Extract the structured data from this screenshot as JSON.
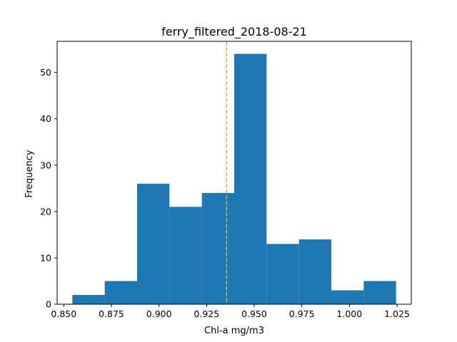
{
  "chart_data": {
    "type": "bar",
    "title": "ferry_filtered_2018-08-21",
    "xlabel": "Chl-a mg/m3",
    "ylabel": "Frequency",
    "xlim": [
      0.8465,
      1.0325
    ],
    "ylim": [
      0,
      56.7
    ],
    "bins": [
      {
        "x0": 0.8545,
        "x1": 0.8715,
        "count": 2
      },
      {
        "x0": 0.8715,
        "x1": 0.8885,
        "count": 5
      },
      {
        "x0": 0.8885,
        "x1": 0.9055,
        "count": 26
      },
      {
        "x0": 0.9055,
        "x1": 0.9225,
        "count": 21
      },
      {
        "x0": 0.9225,
        "x1": 0.9395,
        "count": 24
      },
      {
        "x0": 0.9395,
        "x1": 0.9565,
        "count": 54
      },
      {
        "x0": 0.9565,
        "x1": 0.9735,
        "count": 13
      },
      {
        "x0": 0.9735,
        "x1": 0.9905,
        "count": 14
      },
      {
        "x0": 0.9905,
        "x1": 1.0075,
        "count": 3
      },
      {
        "x0": 1.0075,
        "x1": 1.0245,
        "count": 5
      }
    ],
    "mean_line": {
      "x": 0.9355,
      "color": "#ffa500",
      "style": "dashed"
    },
    "bar_color": "#1f77b4",
    "x_ticks": [
      {
        "value": 0.85,
        "label": "0.850"
      },
      {
        "value": 0.875,
        "label": "0.875"
      },
      {
        "value": 0.9,
        "label": "0.900"
      },
      {
        "value": 0.925,
        "label": "0.925"
      },
      {
        "value": 0.95,
        "label": "0.950"
      },
      {
        "value": 0.975,
        "label": "0.975"
      },
      {
        "value": 1.0,
        "label": "1.000"
      },
      {
        "value": 1.025,
        "label": "1.025"
      }
    ],
    "y_ticks": [
      {
        "value": 0,
        "label": "0"
      },
      {
        "value": 10,
        "label": "10"
      },
      {
        "value": 20,
        "label": "20"
      },
      {
        "value": 30,
        "label": "30"
      },
      {
        "value": 40,
        "label": "40"
      },
      {
        "value": 50,
        "label": "50"
      }
    ],
    "grid": false,
    "legend": "none"
  }
}
